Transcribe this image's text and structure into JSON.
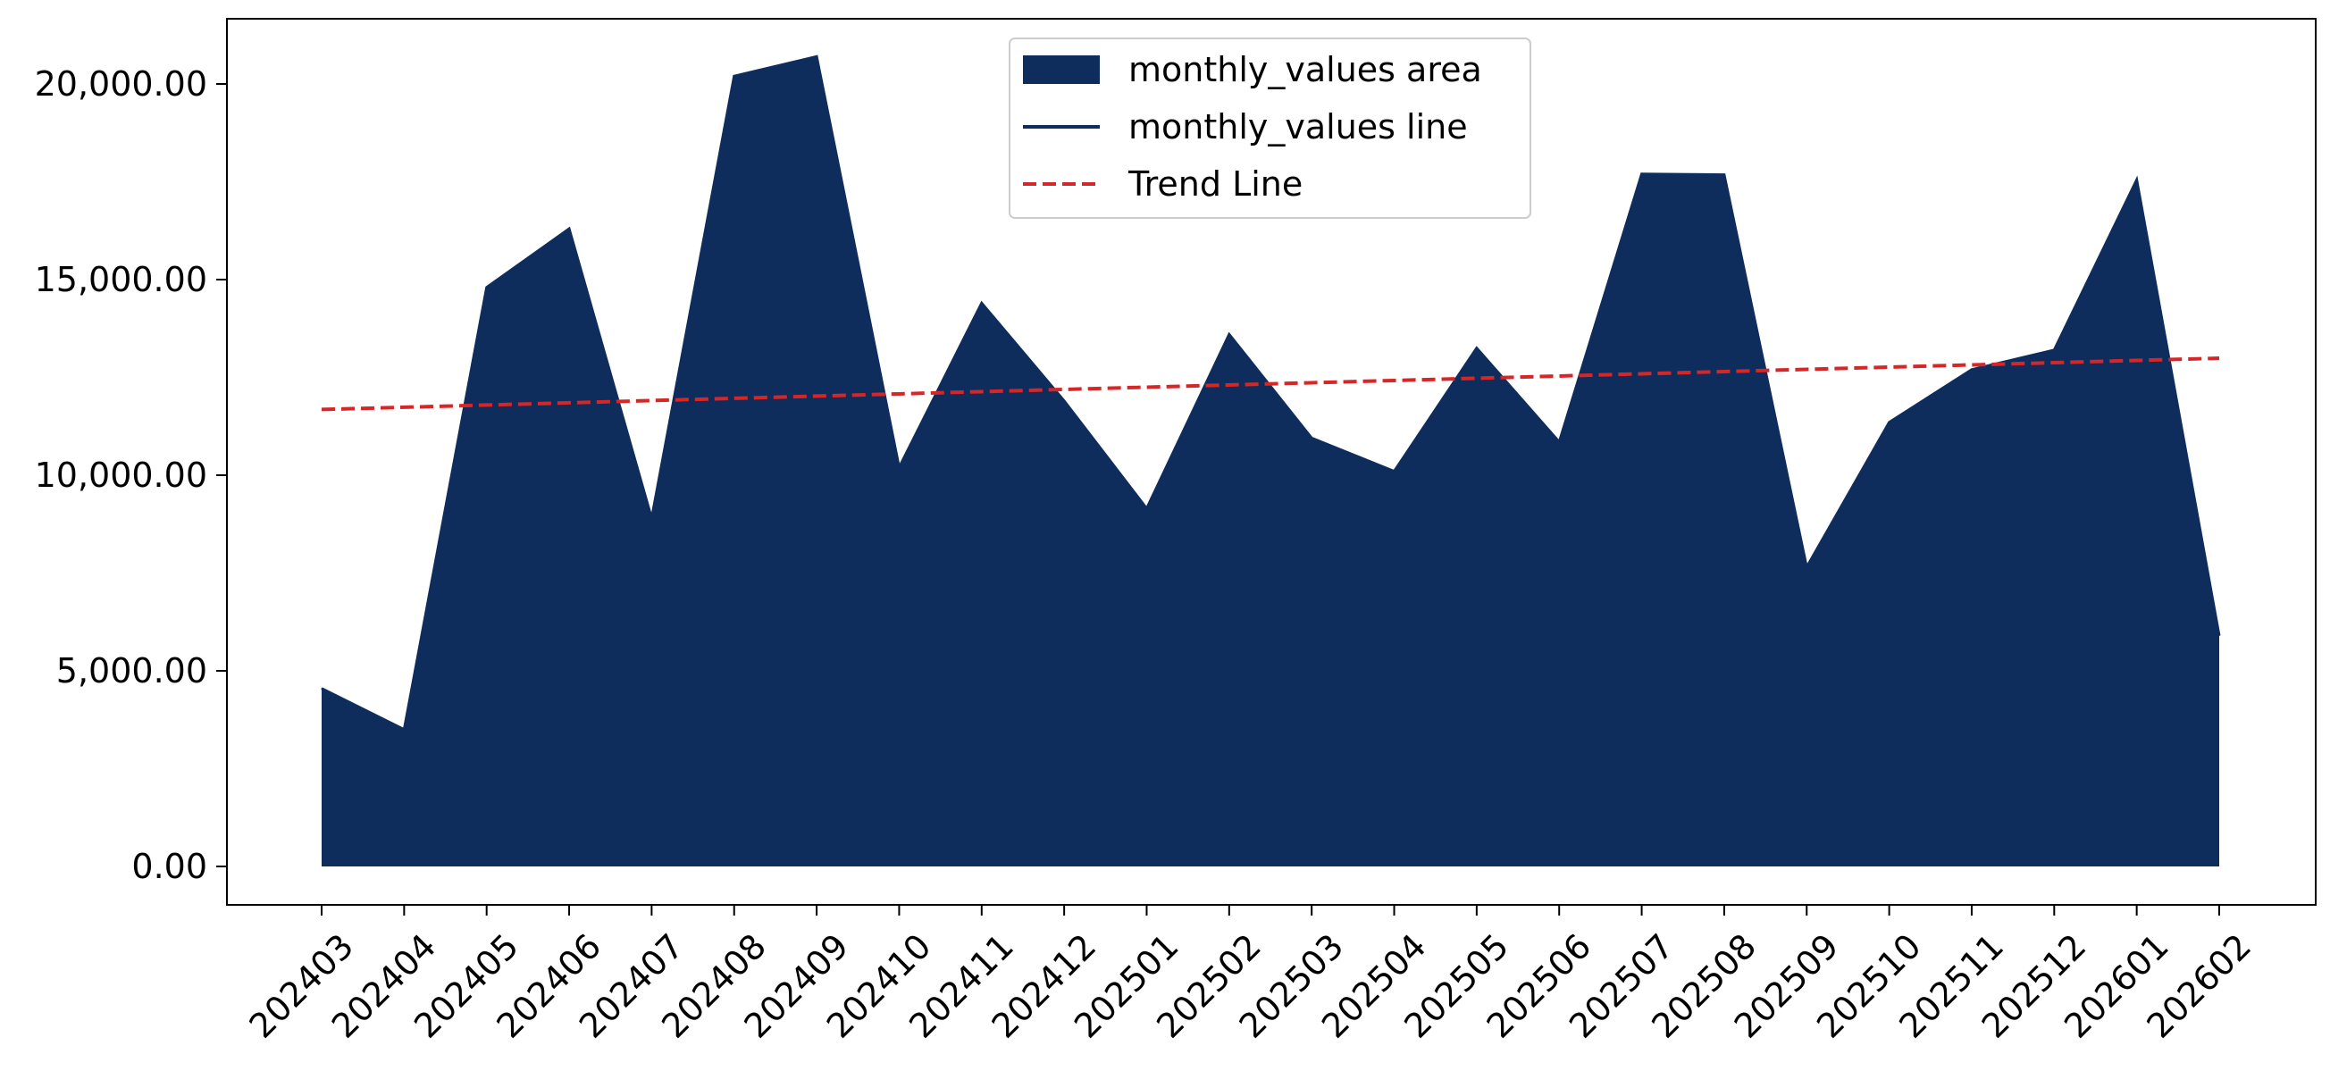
{
  "chart_data": {
    "type": "area",
    "title": "",
    "xlabel": "",
    "ylabel": "",
    "categories": [
      "202403",
      "202404",
      "202405",
      "202406",
      "202407",
      "202408",
      "202409",
      "202410",
      "202411",
      "202412",
      "202501",
      "202502",
      "202503",
      "202504",
      "202505",
      "202506",
      "202507",
      "202508",
      "202509",
      "202510",
      "202511",
      "202512",
      "202601",
      "202602"
    ],
    "y_ticks": [
      "0.00",
      "5,000.00",
      "10,000.00",
      "15,000.00",
      "20,000.00"
    ],
    "y_tick_values": [
      0,
      5000,
      10000,
      15000,
      20000
    ],
    "ylim": [
      -1000,
      21750
    ],
    "series": [
      {
        "name": "monthly_values area",
        "kind": "area",
        "color": "#0f2d5c",
        "values": [
          4550,
          3500,
          14800,
          16300,
          8900,
          20200,
          20700,
          10200,
          14400,
          11900,
          9150,
          13600,
          10950,
          10100,
          13250,
          10850,
          17700,
          17680,
          7650,
          11350,
          12700,
          13200,
          17550,
          5900
        ]
      },
      {
        "name": "monthly_values line",
        "kind": "line",
        "color": "#0f2d5c",
        "values": [
          4550,
          3500,
          14800,
          16300,
          8900,
          20200,
          20700,
          10200,
          14400,
          11900,
          9150,
          13600,
          10950,
          10100,
          13250,
          10850,
          17700,
          17680,
          7650,
          11350,
          12700,
          13200,
          17550,
          5900
        ]
      },
      {
        "name": "Trend Line",
        "kind": "dashed-line",
        "color": "#d62728",
        "values": [
          11680,
          11737,
          11794,
          11851,
          11908,
          11965,
          12022,
          12079,
          12136,
          12193,
          12250,
          12307,
          12364,
          12421,
          12478,
          12535,
          12592,
          12649,
          12706,
          12763,
          12820,
          12877,
          12934,
          12990
        ]
      }
    ],
    "legend": {
      "position": "upper-center",
      "entries": [
        {
          "label": "monthly_values area",
          "kind": "area",
          "color": "#0f2d5c"
        },
        {
          "label": "monthly_values line",
          "kind": "line",
          "color": "#0f2d5c"
        },
        {
          "label": "Trend Line",
          "kind": "dashed-line",
          "color": "#d62728"
        }
      ]
    },
    "grid": false
  }
}
